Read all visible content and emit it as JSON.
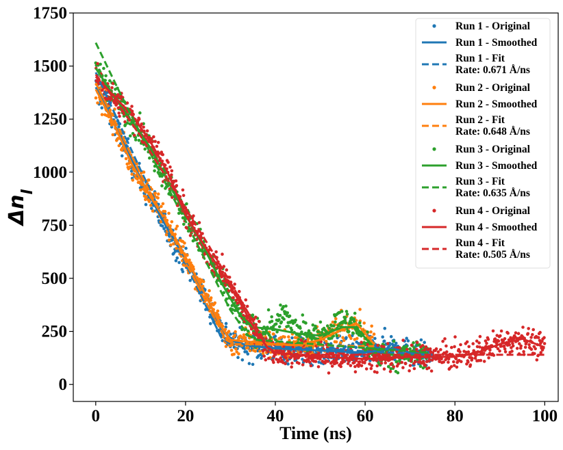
{
  "chart_data": {
    "type": "scatter",
    "title": "",
    "xlabel": "Time (ns)",
    "ylabel_main": "Δn",
    "ylabel_sub": "l",
    "xlim": [
      -5,
      103
    ],
    "ylim": [
      -80,
      1750
    ],
    "xticks": [
      0,
      20,
      40,
      60,
      80,
      100
    ],
    "yticks": [
      0,
      250,
      500,
      750,
      1000,
      1250,
      1500,
      1750
    ],
    "grid": false,
    "legend_position": "top-right",
    "series": [
      {
        "name": "Run 1",
        "color": "#1f77b4",
        "original_label": "Run 1 - Original",
        "smoothed_label": "Run 1 - Smoothed",
        "fit_label": "Run 1 - Fit",
        "rate_label": "Rate: 0.671 Å/ns",
        "x_end": 75,
        "original_points": [
          [
            0,
            1400
          ],
          [
            2,
            1330
          ],
          [
            4,
            1240
          ],
          [
            6,
            1140
          ],
          [
            8,
            1050
          ],
          [
            10,
            960
          ],
          [
            12,
            880
          ],
          [
            14,
            800
          ],
          [
            16,
            730
          ],
          [
            18,
            650
          ],
          [
            20,
            580
          ],
          [
            22,
            500
          ],
          [
            24,
            420
          ],
          [
            26,
            340
          ],
          [
            28,
            260
          ],
          [
            30,
            210
          ],
          [
            32,
            185
          ],
          [
            35,
            175
          ],
          [
            40,
            170
          ],
          [
            45,
            160
          ],
          [
            50,
            150
          ],
          [
            55,
            155
          ],
          [
            60,
            150
          ],
          [
            65,
            190
          ],
          [
            70,
            150
          ],
          [
            75,
            130
          ]
        ],
        "smoothed": [
          [
            0,
            1400
          ],
          [
            5,
            1190
          ],
          [
            10,
            970
          ],
          [
            15,
            770
          ],
          [
            20,
            590
          ],
          [
            25,
            400
          ],
          [
            28,
            260
          ],
          [
            31,
            200
          ],
          [
            35,
            180
          ],
          [
            40,
            170
          ],
          [
            50,
            160
          ],
          [
            60,
            150
          ],
          [
            66,
            170
          ],
          [
            70,
            150
          ],
          [
            75,
            140
          ]
        ],
        "fit": [
          [
            0,
            1470
          ],
          [
            5,
            1240
          ],
          [
            10,
            1010
          ],
          [
            15,
            790
          ],
          [
            20,
            570
          ],
          [
            25,
            350
          ],
          [
            28,
            220
          ],
          [
            30,
            190
          ],
          [
            75,
            140
          ]
        ]
      },
      {
        "name": "Run 2",
        "color": "#ff7f0e",
        "original_label": "Run 2 - Original",
        "smoothed_label": "Run 2 - Smoothed",
        "fit_label": "Run 2 - Fit",
        "rate_label": "Rate: 0.648 Å/ns",
        "x_end": 62,
        "original_points": [
          [
            0,
            1380
          ],
          [
            2,
            1330
          ],
          [
            4,
            1230
          ],
          [
            6,
            1130
          ],
          [
            8,
            1030
          ],
          [
            10,
            970
          ],
          [
            12,
            900
          ],
          [
            14,
            830
          ],
          [
            16,
            760
          ],
          [
            18,
            680
          ],
          [
            20,
            600
          ],
          [
            22,
            520
          ],
          [
            24,
            440
          ],
          [
            26,
            360
          ],
          [
            28,
            270
          ],
          [
            30,
            190
          ],
          [
            32,
            210
          ],
          [
            35,
            200
          ],
          [
            40,
            190
          ],
          [
            45,
            180
          ],
          [
            50,
            210
          ],
          [
            55,
            260
          ],
          [
            58,
            290
          ],
          [
            62,
            180
          ]
        ],
        "smoothed": [
          [
            0,
            1390
          ],
          [
            4,
            1230
          ],
          [
            8,
            1040
          ],
          [
            12,
            890
          ],
          [
            16,
            760
          ],
          [
            20,
            600
          ],
          [
            24,
            440
          ],
          [
            28,
            270
          ],
          [
            30,
            210
          ],
          [
            35,
            200
          ],
          [
            40,
            190
          ],
          [
            45,
            185
          ],
          [
            50,
            210
          ],
          [
            55,
            260
          ],
          [
            58,
            290
          ],
          [
            62,
            190
          ]
        ],
        "fit": [
          [
            0,
            1420
          ],
          [
            5,
            1210
          ],
          [
            10,
            990
          ],
          [
            15,
            790
          ],
          [
            20,
            580
          ],
          [
            25,
            370
          ],
          [
            29,
            210
          ],
          [
            31,
            190
          ],
          [
            62,
            180
          ]
        ]
      },
      {
        "name": "Run 3",
        "color": "#2ca02c",
        "original_label": "Run 3 - Original",
        "smoothed_label": "Run 3 - Smoothed",
        "fit_label": "Run 3 - Fit",
        "rate_label": "Rate: 0.635 Å/ns",
        "x_end": 74,
        "original_points": [
          [
            0,
            1490
          ],
          [
            2,
            1440
          ],
          [
            4,
            1360
          ],
          [
            6,
            1290
          ],
          [
            8,
            1240
          ],
          [
            10,
            1200
          ],
          [
            12,
            1120
          ],
          [
            14,
            1040
          ],
          [
            16,
            960
          ],
          [
            18,
            880
          ],
          [
            20,
            800
          ],
          [
            22,
            720
          ],
          [
            24,
            640
          ],
          [
            26,
            560
          ],
          [
            28,
            480
          ],
          [
            30,
            400
          ],
          [
            32,
            330
          ],
          [
            34,
            280
          ],
          [
            36,
            250
          ],
          [
            40,
            270
          ],
          [
            42,
            330
          ],
          [
            45,
            240
          ],
          [
            50,
            230
          ],
          [
            55,
            300
          ],
          [
            58,
            270
          ],
          [
            62,
            150
          ],
          [
            65,
            130
          ],
          [
            70,
            140
          ],
          [
            74,
            150
          ]
        ],
        "smoothed": [
          [
            0,
            1490
          ],
          [
            4,
            1360
          ],
          [
            8,
            1240
          ],
          [
            12,
            1120
          ],
          [
            16,
            960
          ],
          [
            20,
            800
          ],
          [
            24,
            650
          ],
          [
            28,
            480
          ],
          [
            32,
            330
          ],
          [
            35,
            270
          ],
          [
            40,
            260
          ],
          [
            45,
            240
          ],
          [
            50,
            230
          ],
          [
            55,
            270
          ],
          [
            58,
            270
          ],
          [
            62,
            170
          ],
          [
            65,
            140
          ],
          [
            70,
            140
          ],
          [
            74,
            150
          ]
        ],
        "fit": [
          [
            0,
            1610
          ],
          [
            5,
            1390
          ],
          [
            10,
            1180
          ],
          [
            15,
            970
          ],
          [
            20,
            770
          ],
          [
            25,
            560
          ],
          [
            30,
            350
          ],
          [
            34,
            230
          ],
          [
            36,
            210
          ],
          [
            74,
            150
          ]
        ]
      },
      {
        "name": "Run 4",
        "color": "#d62728",
        "original_label": "Run 4 - Original",
        "smoothed_label": "Run 4 - Smoothed",
        "fit_label": "Run 4 - Fit",
        "rate_label": "Rate: 0.505 Å/ns",
        "x_end": 100,
        "original_points": [
          [
            0,
            1450
          ],
          [
            2,
            1400
          ],
          [
            4,
            1350
          ],
          [
            6,
            1310
          ],
          [
            8,
            1260
          ],
          [
            10,
            1210
          ],
          [
            12,
            1150
          ],
          [
            14,
            1080
          ],
          [
            16,
            1000
          ],
          [
            18,
            900
          ],
          [
            20,
            800
          ],
          [
            22,
            720
          ],
          [
            24,
            650
          ],
          [
            26,
            590
          ],
          [
            28,
            530
          ],
          [
            30,
            460
          ],
          [
            32,
            390
          ],
          [
            34,
            310
          ],
          [
            36,
            240
          ],
          [
            38,
            180
          ],
          [
            40,
            150
          ],
          [
            45,
            140
          ],
          [
            50,
            130
          ],
          [
            55,
            120
          ],
          [
            60,
            120
          ],
          [
            65,
            130
          ],
          [
            70,
            130
          ],
          [
            75,
            130
          ],
          [
            80,
            130
          ],
          [
            85,
            150
          ],
          [
            88,
            180
          ],
          [
            90,
            200
          ],
          [
            95,
            220
          ],
          [
            100,
            170
          ]
        ],
        "smoothed": [
          [
            0,
            1450
          ],
          [
            4,
            1360
          ],
          [
            8,
            1270
          ],
          [
            12,
            1150
          ],
          [
            16,
            1000
          ],
          [
            20,
            800
          ],
          [
            24,
            660
          ],
          [
            28,
            530
          ],
          [
            32,
            390
          ],
          [
            36,
            240
          ],
          [
            38,
            180
          ],
          [
            40,
            150
          ],
          [
            45,
            140
          ],
          [
            50,
            130
          ],
          [
            60,
            120
          ],
          [
            70,
            130
          ],
          [
            80,
            130
          ],
          [
            85,
            150
          ],
          [
            90,
            190
          ],
          [
            95,
            215
          ],
          [
            100,
            175
          ]
        ],
        "fit": [
          [
            0,
            1460
          ],
          [
            5,
            1320
          ],
          [
            10,
            1170
          ],
          [
            15,
            1000
          ],
          [
            20,
            830
          ],
          [
            25,
            660
          ],
          [
            30,
            480
          ],
          [
            35,
            300
          ],
          [
            38,
            180
          ],
          [
            40,
            140
          ],
          [
            100,
            140
          ]
        ]
      }
    ]
  }
}
